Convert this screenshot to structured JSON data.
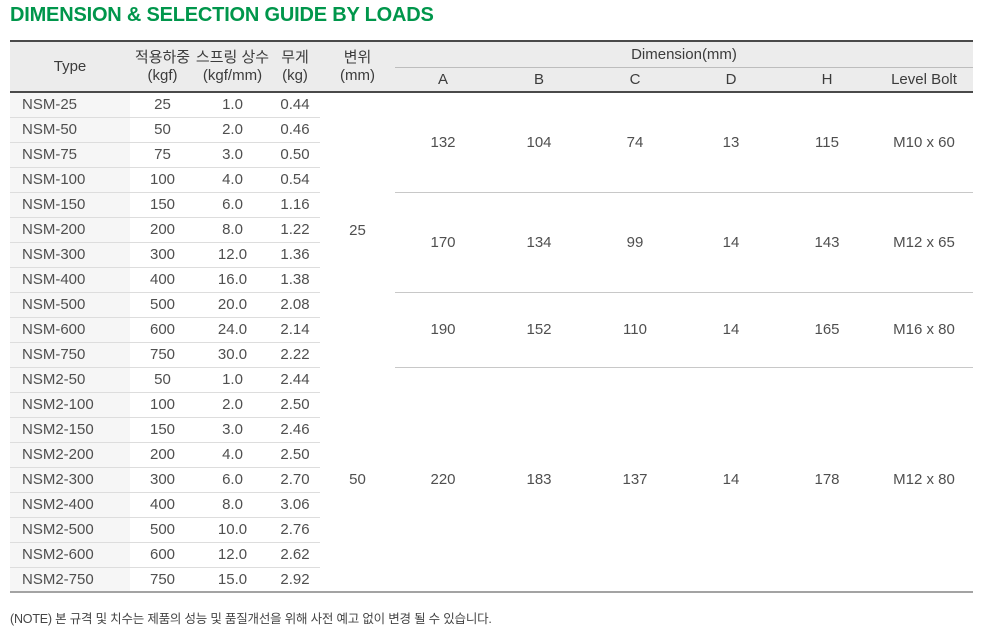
{
  "page": {
    "title": "DIMENSION & SELECTION GUIDE BY LOADS",
    "note": "(NOTE) 본 규격 및 치수는 제품의 성능 및 품질개선을 위해 사전 예고 없이 변경 될 수 있습니다."
  },
  "colors": {
    "title_green": "#00964b",
    "header_bg": "#ececec",
    "type_column_bg": "#f6f6f6",
    "dark_border": "#4a4a4a",
    "row_divider": "#dddddd",
    "group_divider": "#c8c8c8"
  },
  "table": {
    "header": {
      "type": "Type",
      "load_label": "적용하중",
      "load_unit": "(kgf)",
      "spring_label": "스프링 상수",
      "spring_unit": "(kgf/mm)",
      "weight_label": "무게",
      "weight_unit": "(kg)",
      "defl_label": "변위",
      "defl_unit": "(mm)",
      "dimension_label": "Dimension(mm)",
      "dim_columns": [
        "A",
        "B",
        "C",
        "D",
        "H",
        "Level Bolt"
      ]
    },
    "deflections": [
      {
        "value": "25",
        "row_span": 11
      },
      {
        "value": "50",
        "row_span": 9
      }
    ],
    "dim_groups": [
      {
        "row_span": 4,
        "a": "132",
        "b": "104",
        "c": "74",
        "d": "13",
        "h": "115",
        "level_bolt": "M10 x 60"
      },
      {
        "row_span": 4,
        "a": "170",
        "b": "134",
        "c": "99",
        "d": "14",
        "h": "143",
        "level_bolt": "M12 x 65"
      },
      {
        "row_span": 3,
        "a": "190",
        "b": "152",
        "c": "110",
        "d": "14",
        "h": "165",
        "level_bolt": "M16 x 80"
      },
      {
        "row_span": 9,
        "a": "220",
        "b": "183",
        "c": "137",
        "d": "14",
        "h": "178",
        "level_bolt": "M12 x 80"
      }
    ],
    "rows": [
      {
        "type": "NSM-25",
        "load": "25",
        "spring": "1.0",
        "weight": "0.44"
      },
      {
        "type": "NSM-50",
        "load": "50",
        "spring": "2.0",
        "weight": "0.46"
      },
      {
        "type": "NSM-75",
        "load": "75",
        "spring": "3.0",
        "weight": "0.50"
      },
      {
        "type": "NSM-100",
        "load": "100",
        "spring": "4.0",
        "weight": "0.54"
      },
      {
        "type": "NSM-150",
        "load": "150",
        "spring": "6.0",
        "weight": "1.16"
      },
      {
        "type": "NSM-200",
        "load": "200",
        "spring": "8.0",
        "weight": "1.22"
      },
      {
        "type": "NSM-300",
        "load": "300",
        "spring": "12.0",
        "weight": "1.36"
      },
      {
        "type": "NSM-400",
        "load": "400",
        "spring": "16.0",
        "weight": "1.38"
      },
      {
        "type": "NSM-500",
        "load": "500",
        "spring": "20.0",
        "weight": "2.08"
      },
      {
        "type": "NSM-600",
        "load": "600",
        "spring": "24.0",
        "weight": "2.14"
      },
      {
        "type": "NSM-750",
        "load": "750",
        "spring": "30.0",
        "weight": "2.22"
      },
      {
        "type": "NSM2-50",
        "load": "50",
        "spring": "1.0",
        "weight": "2.44"
      },
      {
        "type": "NSM2-100",
        "load": "100",
        "spring": "2.0",
        "weight": "2.50"
      },
      {
        "type": "NSM2-150",
        "load": "150",
        "spring": "3.0",
        "weight": "2.46"
      },
      {
        "type": "NSM2-200",
        "load": "200",
        "spring": "4.0",
        "weight": "2.50"
      },
      {
        "type": "NSM2-300",
        "load": "300",
        "spring": "6.0",
        "weight": "2.70"
      },
      {
        "type": "NSM2-400",
        "load": "400",
        "spring": "8.0",
        "weight": "3.06"
      },
      {
        "type": "NSM2-500",
        "load": "500",
        "spring": "10.0",
        "weight": "2.76"
      },
      {
        "type": "NSM2-600",
        "load": "600",
        "spring": "12.0",
        "weight": "2.62"
      },
      {
        "type": "NSM2-750",
        "load": "750",
        "spring": "15.0",
        "weight": "2.92"
      }
    ]
  }
}
